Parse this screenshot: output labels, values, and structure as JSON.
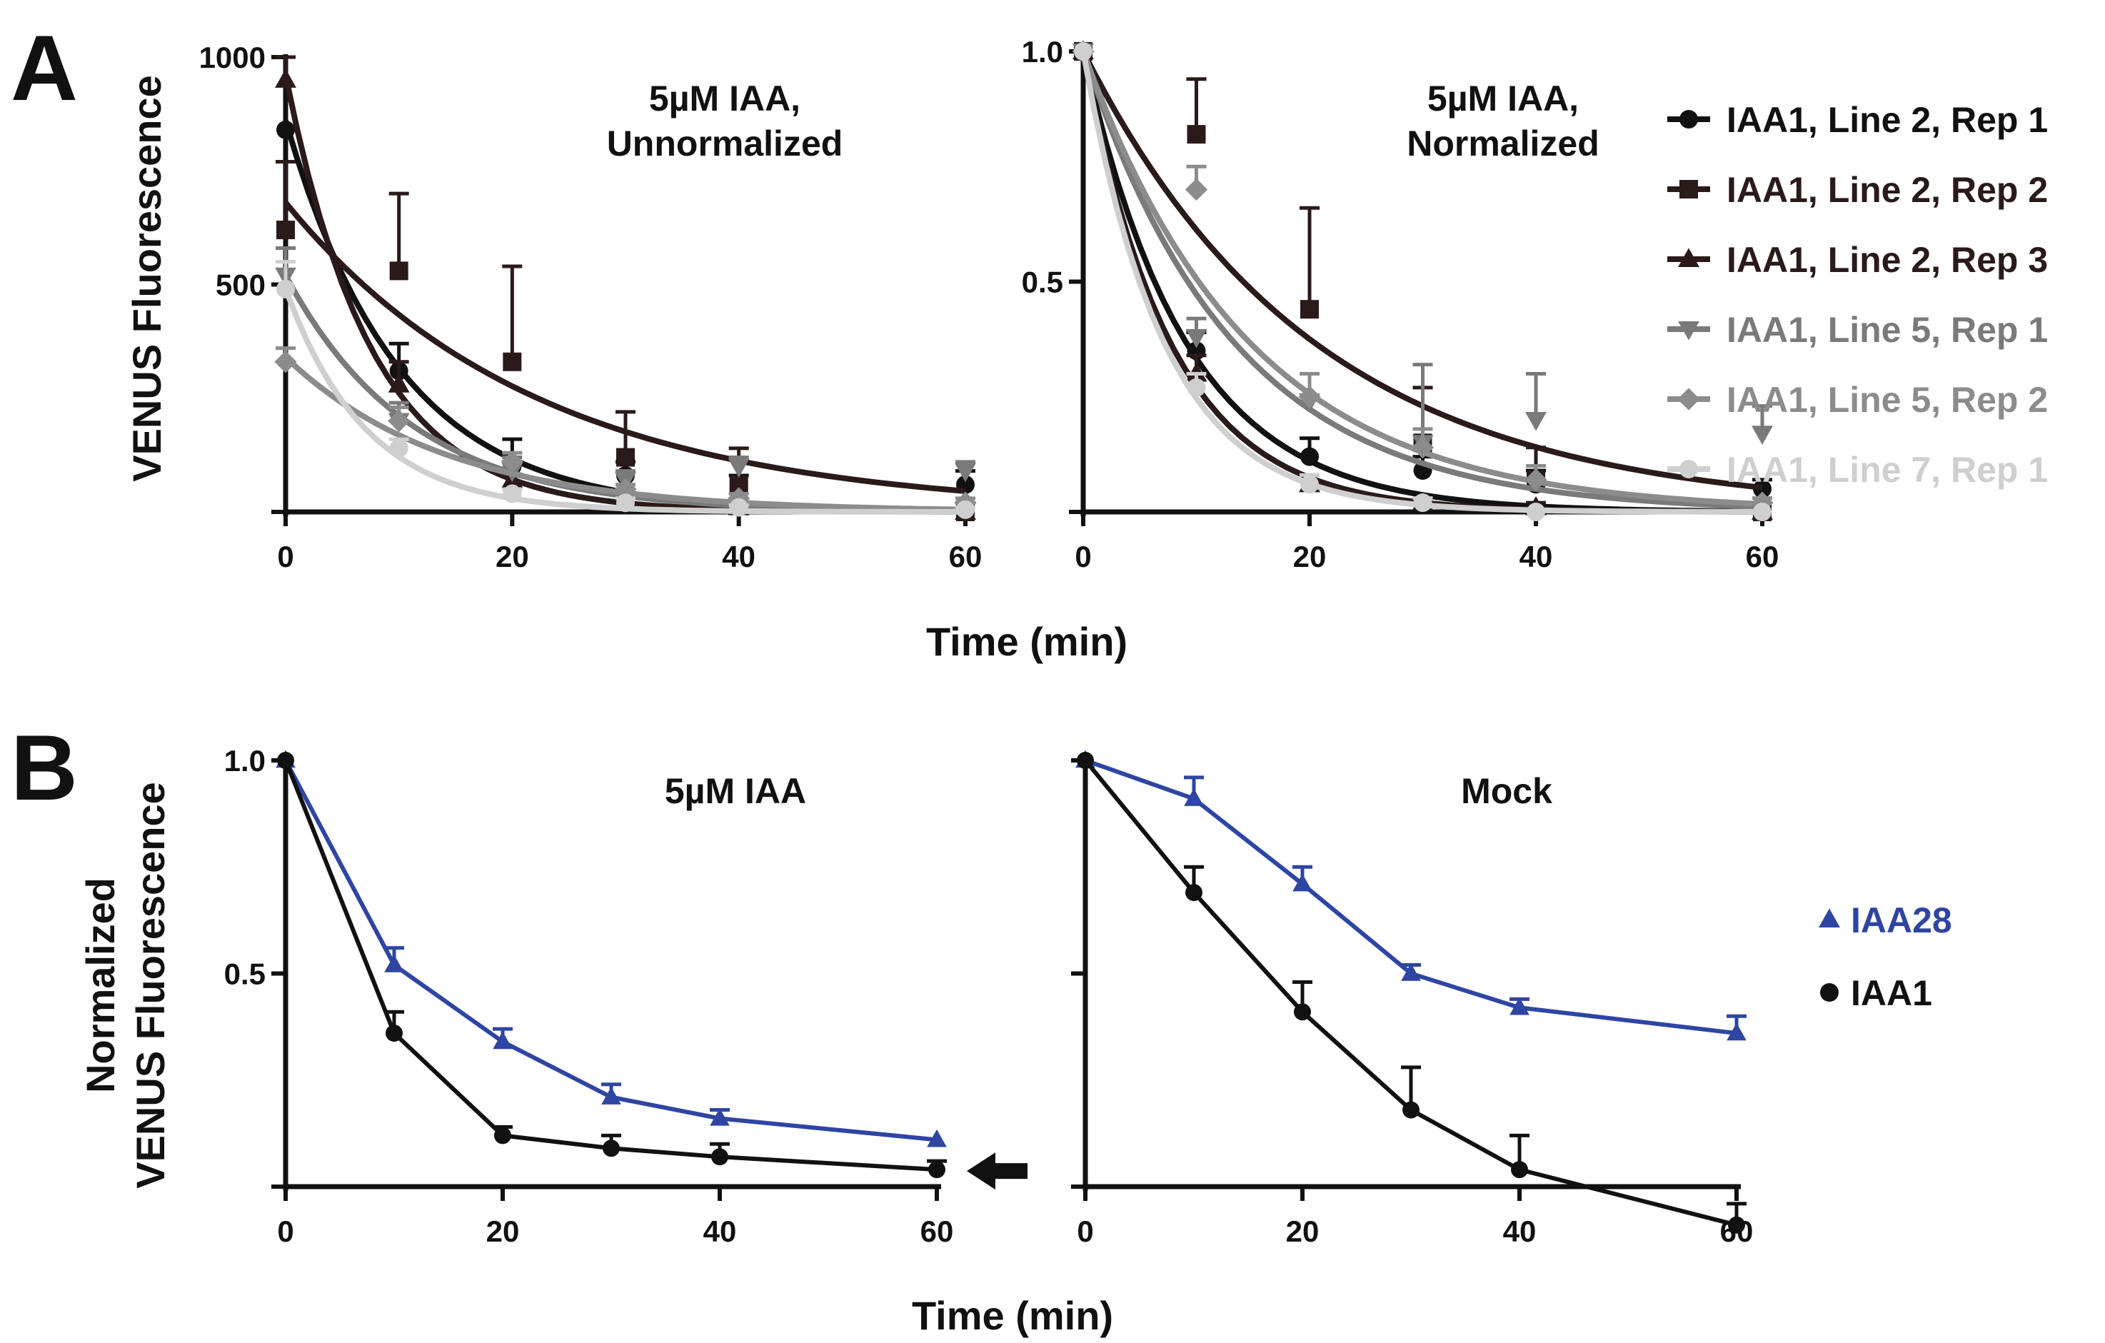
{
  "panel_letters": [
    "A",
    "B"
  ],
  "shared_xlabel_a": "Time (min)",
  "shared_xlabel_b": "Time (min)",
  "ylabel_a": "VENUS Fluorescence",
  "ylabel_b": [
    "Normalized",
    "VENUS Fluorescence"
  ],
  "legend_a": [
    {
      "name": "IAA1, Line 2, Rep 1",
      "marker": "circle",
      "color": "#111111"
    },
    {
      "name": "IAA1, Line 2, Rep 2",
      "marker": "square",
      "color": "#2a1a1a"
    },
    {
      "name": "IAA1, Line 2, Rep 3",
      "marker": "triangle-up",
      "color": "#2a1a1a"
    },
    {
      "name": "IAA1, Line 5, Rep 1",
      "marker": "triangle-down",
      "color": "#7a7a7a"
    },
    {
      "name": "IAA1, Line 5, Rep 2",
      "marker": "diamond",
      "color": "#8c8c8c"
    },
    {
      "name": "IAA1, Line 7, Rep 1",
      "marker": "circle",
      "color": "#cfcfcf"
    }
  ],
  "legend_b": [
    {
      "name": "IAA28",
      "marker": "triangle-up",
      "color": "#2e45a3"
    },
    {
      "name": "IAA1",
      "marker": "circle",
      "color": "#111111"
    }
  ],
  "chart_data": [
    {
      "type": "scatter",
      "title": "5µM IAA,\nUnnormalized",
      "title_lines": [
        "5µM IAA,",
        "Unnormalized"
      ],
      "xlim": [
        0,
        60
      ],
      "ylim": [
        0,
        1000
      ],
      "xticks": [
        0,
        20,
        40,
        60
      ],
      "yticks": [
        0,
        500,
        1000
      ],
      "ytick_labels": [
        "",
        "500",
        "1000"
      ],
      "fit": "exponential decay",
      "series": [
        {
          "name": "IAA1, Line 2, Rep 1",
          "color": "#111111",
          "marker": "circle",
          "x": [
            0,
            10,
            20,
            30,
            40,
            60
          ],
          "y": [
            840,
            310,
            100,
            80,
            50,
            60
          ],
          "err": [
            0,
            60,
            60,
            30,
            30,
            30
          ],
          "fit_a": 860,
          "fit_k": 0.1
        },
        {
          "name": "IAA1, Line 2, Rep 2",
          "color": "#2a1a1a",
          "marker": "square",
          "x": [
            0,
            10,
            20,
            30,
            40,
            60
          ],
          "y": [
            620,
            530,
            330,
            120,
            60,
            0
          ],
          "err": [
            150,
            170,
            210,
            100,
            80,
            20
          ],
          "fit_a": 680,
          "fit_k": 0.045
        },
        {
          "name": "IAA1, Line 2, Rep 3",
          "color": "#2a1a1a",
          "marker": "triangle-up",
          "x": [
            0,
            10,
            20,
            30,
            40,
            60
          ],
          "y": [
            950,
            280,
            70,
            20,
            10,
            0
          ],
          "err": [
            50,
            50,
            40,
            20,
            10,
            10
          ],
          "fit_a": 960,
          "fit_k": 0.13
        },
        {
          "name": "IAA1, Line 5, Rep 1",
          "color": "#7a7a7a",
          "marker": "triangle-down",
          "x": [
            0,
            10,
            20,
            30,
            40,
            60
          ],
          "y": [
            520,
            200,
            90,
            70,
            100,
            90
          ],
          "err": [
            60,
            40,
            30,
            20,
            20,
            20
          ],
          "fit_a": 520,
          "fit_k": 0.09
        },
        {
          "name": "IAA1, Line 5, Rep 2",
          "color": "#8c8c8c",
          "marker": "diamond",
          "x": [
            0,
            10,
            20,
            30,
            40,
            60
          ],
          "y": [
            330,
            200,
            110,
            50,
            30,
            20
          ],
          "err": [
            30,
            30,
            20,
            10,
            10,
            10
          ],
          "fit_a": 340,
          "fit_k": 0.07
        },
        {
          "name": "IAA1, Line 7, Rep 1",
          "color": "#cfcfcf",
          "marker": "circle",
          "x": [
            0,
            10,
            20,
            30,
            40,
            60
          ],
          "y": [
            490,
            140,
            40,
            20,
            10,
            5
          ],
          "err": [
            60,
            20,
            10,
            10,
            5,
            5
          ],
          "fit_a": 490,
          "fit_k": 0.14
        }
      ]
    },
    {
      "type": "scatter",
      "title": "5µM IAA,\nNormalized",
      "title_lines": [
        "5µM IAA,",
        "Normalized"
      ],
      "xlim": [
        0,
        60
      ],
      "ylim": [
        0,
        1.0
      ],
      "xticks": [
        0,
        20,
        40,
        60
      ],
      "yticks": [
        0,
        0.5,
        1.0
      ],
      "ytick_labels": [
        "",
        "0.5",
        "1.0"
      ],
      "fit": "exponential decay",
      "series": [
        {
          "name": "IAA1, Line 2, Rep 1",
          "color": "#111111",
          "marker": "circle",
          "x": [
            0,
            10,
            20,
            30,
            40,
            60
          ],
          "y": [
            1.0,
            0.35,
            0.12,
            0.09,
            0.06,
            0.05
          ],
          "err": [
            0,
            0.04,
            0.04,
            0.03,
            0.03,
            0.02
          ],
          "fit_a": 1.0,
          "fit_k": 0.11
        },
        {
          "name": "IAA1, Line 2, Rep 2",
          "color": "#2a1a1a",
          "marker": "square",
          "x": [
            0,
            10,
            20,
            30,
            40,
            60
          ],
          "y": [
            1.0,
            0.82,
            0.44,
            0.15,
            0.07,
            0.0
          ],
          "err": [
            0,
            0.12,
            0.22,
            0.12,
            0.07,
            0.0
          ],
          "fit_a": 1.0,
          "fit_k": 0.049
        },
        {
          "name": "IAA1, Line 2, Rep 3",
          "color": "#2a1a1a",
          "marker": "triangle-up",
          "x": [
            0,
            10,
            20,
            30,
            40,
            60
          ],
          "y": [
            1.0,
            0.3,
            0.06,
            0.02,
            0.01,
            0.0
          ],
          "err": [
            0,
            0.04,
            0.02,
            0.01,
            0.01,
            0.0
          ],
          "fit_a": 1.0,
          "fit_k": 0.13
        },
        {
          "name": "IAA1, Line 5, Rep 1",
          "color": "#7a7a7a",
          "marker": "triangle-down",
          "x": [
            0,
            10,
            20,
            30,
            40,
            60
          ],
          "y": [
            1.0,
            0.38,
            0.24,
            0.15,
            0.2,
            0.17
          ],
          "err": [
            0,
            0.04,
            0.06,
            0.17,
            0.1,
            0.06
          ],
          "fit_a": 1.0,
          "fit_k": 0.075
        },
        {
          "name": "IAA1, Line 5, Rep 2",
          "color": "#8c8c8c",
          "marker": "diamond",
          "x": [
            0,
            10,
            20,
            30,
            40,
            60
          ],
          "y": [
            1.0,
            0.7,
            0.25,
            0.14,
            0.07,
            0.02
          ],
          "err": [
            0,
            0.05,
            0.05,
            0.04,
            0.03,
            0.01
          ],
          "fit_a": 1.0,
          "fit_k": 0.068
        },
        {
          "name": "IAA1, Line 7, Rep 1",
          "color": "#cfcfcf",
          "marker": "circle",
          "x": [
            0,
            10,
            20,
            30,
            40,
            60
          ],
          "y": [
            1.0,
            0.27,
            0.06,
            0.02,
            0.0,
            0.0
          ],
          "err": [
            0,
            0.03,
            0.02,
            0.01,
            0.0,
            0.0
          ],
          "fit_a": 1.0,
          "fit_k": 0.14
        }
      ]
    },
    {
      "type": "line",
      "title": "5µM IAA",
      "title_lines": [
        "5µM IAA"
      ],
      "xlim": [
        0,
        60
      ],
      "ylim": [
        0,
        1.0
      ],
      "xticks": [
        0,
        20,
        40,
        60
      ],
      "yticks": [
        0,
        0.5,
        1.0
      ],
      "ytick_labels": [
        "",
        "0.5",
        "1.0"
      ],
      "arrow_at": {
        "x": 60,
        "y": 0.04
      },
      "series": [
        {
          "name": "IAA28",
          "color": "#2e45a3",
          "marker": "triangle-up",
          "x": [
            0,
            10,
            20,
            30,
            40,
            60
          ],
          "y": [
            1.0,
            0.52,
            0.34,
            0.21,
            0.16,
            0.11
          ],
          "err": [
            0,
            0.04,
            0.03,
            0.03,
            0.02,
            0.0
          ]
        },
        {
          "name": "IAA1",
          "color": "#111111",
          "marker": "circle",
          "x": [
            0,
            10,
            20,
            30,
            40,
            60
          ],
          "y": [
            1.0,
            0.36,
            0.12,
            0.09,
            0.07,
            0.04
          ],
          "err": [
            0,
            0.05,
            0.02,
            0.03,
            0.03,
            0.02
          ]
        }
      ]
    },
    {
      "type": "line",
      "title": "Mock",
      "title_lines": [
        "Mock"
      ],
      "xlim": [
        0,
        60
      ],
      "ylim": [
        0,
        1.0
      ],
      "xticks": [
        0,
        20,
        40,
        60
      ],
      "yticks": [
        0,
        0.5,
        1.0
      ],
      "ytick_labels": [
        "",
        "",
        ""
      ],
      "series": [
        {
          "name": "IAA28",
          "color": "#2e45a3",
          "marker": "triangle-up",
          "x": [
            0,
            10,
            20,
            30,
            40,
            60
          ],
          "y": [
            1.0,
            0.91,
            0.71,
            0.5,
            0.42,
            0.36
          ],
          "err": [
            0,
            0.05,
            0.04,
            0.02,
            0.02,
            0.04
          ]
        },
        {
          "name": "IAA1",
          "color": "#111111",
          "marker": "circle",
          "x": [
            0,
            10,
            20,
            30,
            40,
            60
          ],
          "y": [
            1.0,
            0.69,
            0.41,
            0.18,
            0.04,
            -0.09
          ],
          "err": [
            0,
            0.06,
            0.07,
            0.1,
            0.08,
            0.05
          ]
        }
      ]
    }
  ]
}
